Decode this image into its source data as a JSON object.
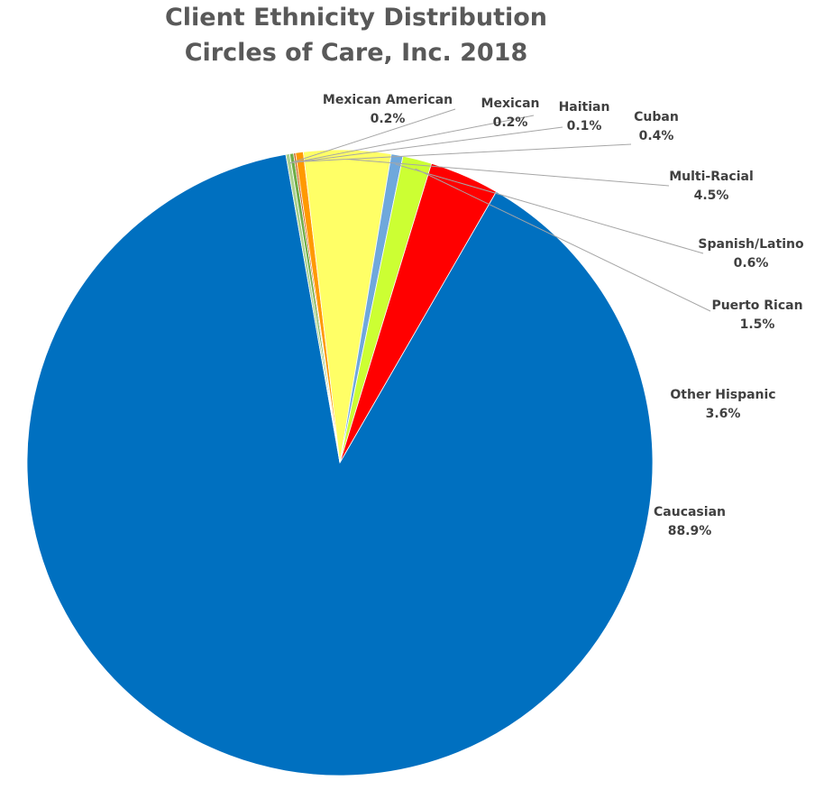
{
  "chart_data": {
    "type": "pie",
    "title": "Client Ethnicity Distribution",
    "subtitle": "Circles of Care, Inc. 2018",
    "slices": [
      {
        "name": "Caucasian",
        "value": 88.9,
        "label": "88.9%",
        "color": "#0070C0"
      },
      {
        "name": "Mexican American",
        "value": 0.2,
        "label": "0.2%",
        "color": "#A9D18E"
      },
      {
        "name": "Mexican",
        "value": 0.2,
        "label": "0.2%",
        "color": "#70AD47"
      },
      {
        "name": "Haitian",
        "value": 0.1,
        "label": "0.1%",
        "color": "#C55A11"
      },
      {
        "name": "Cuban",
        "value": 0.4,
        "label": "0.4%",
        "color": "#FF9900"
      },
      {
        "name": "Multi-Racial",
        "value": 4.5,
        "label": "4.5%",
        "color": "#FFFF66"
      },
      {
        "name": "Spanish/Latino",
        "value": 0.6,
        "label": "0.6%",
        "color": "#6FA8DC"
      },
      {
        "name": "Puerto Rican",
        "value": 1.5,
        "label": "1.5%",
        "color": "#CCFF33"
      },
      {
        "name": "Other Hispanic",
        "value": 3.6,
        "label": "3.6%",
        "color": "#FF0000"
      }
    ]
  }
}
